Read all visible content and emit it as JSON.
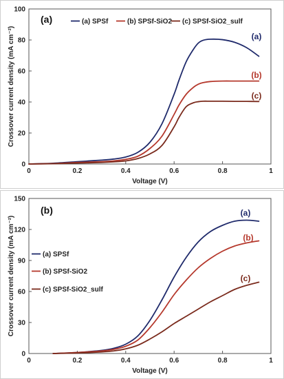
{
  "chart_data": [
    {
      "type": "line",
      "panel_label": "(a)",
      "xlabel": "Voltage (V)",
      "ylabel": "Crossover current density (mA cm⁻²)",
      "xlim": [
        0,
        1
      ],
      "ylim": [
        0,
        100
      ],
      "xticks": [
        0,
        0.2,
        0.4,
        0.6,
        0.8,
        1
      ],
      "xtick_labels": [
        "0",
        "0.2",
        "0.4",
        "0.6",
        "0.8",
        "1"
      ],
      "yticks": [
        0,
        20,
        40,
        60,
        80,
        100
      ],
      "ytick_labels": [
        "0",
        "20",
        "40",
        "60",
        "80",
        "100"
      ],
      "legend_position": "top",
      "series": [
        {
          "name": "(a) SPSf",
          "label": "(a)",
          "color": "#1f2a6b",
          "x": [
            0.0,
            0.1,
            0.2,
            0.3,
            0.35,
            0.4,
            0.45,
            0.5,
            0.55,
            0.6,
            0.62,
            0.65,
            0.68,
            0.7,
            0.72,
            0.75,
            0.8,
            0.85,
            0.9,
            0.95
          ],
          "y": [
            0,
            0.5,
            1.5,
            2.5,
            3.2,
            4.5,
            7.5,
            14,
            26,
            45,
            54,
            66,
            74,
            78,
            79.8,
            80.5,
            80.2,
            78.5,
            75,
            69.5
          ]
        },
        {
          "name": "(b) SPSf-SiO2",
          "label": "(b)",
          "color": "#b5382c",
          "x": [
            0.0,
            0.1,
            0.2,
            0.3,
            0.35,
            0.4,
            0.45,
            0.5,
            0.55,
            0.6,
            0.62,
            0.65,
            0.68,
            0.7,
            0.72,
            0.75,
            0.8,
            0.85,
            0.9,
            0.95
          ],
          "y": [
            0,
            0.3,
            1.0,
            1.5,
            2.0,
            3.0,
            5.0,
            10,
            18,
            32,
            38,
            45,
            49.5,
            51.5,
            52.5,
            53.2,
            53.5,
            53.5,
            53.5,
            53.5
          ]
        },
        {
          "name": "(c) SPSf-SiO2_sulf",
          "label": "(c)",
          "color": "#7a2a1c",
          "x": [
            0.0,
            0.1,
            0.2,
            0.3,
            0.35,
            0.4,
            0.45,
            0.5,
            0.55,
            0.6,
            0.62,
            0.65,
            0.68,
            0.7,
            0.72,
            0.75,
            0.8,
            0.85,
            0.9,
            0.95
          ],
          "y": [
            0,
            0.2,
            0.6,
            1.0,
            1.4,
            2.0,
            3.5,
            6.5,
            12,
            24,
            30,
            37,
            39.5,
            40.2,
            40.5,
            40.5,
            40.5,
            40.4,
            40.4,
            40.3
          ]
        }
      ]
    },
    {
      "type": "line",
      "panel_label": "(b)",
      "xlabel": "Voltage (V)",
      "ylabel": "Crossover current density (mA cm⁻²)",
      "xlim": [
        0,
        1
      ],
      "ylim": [
        0,
        150
      ],
      "xticks": [
        0,
        0.2,
        0.4,
        0.6,
        0.8,
        1
      ],
      "xtick_labels": [
        "0",
        "0.2",
        "0.4",
        "0.6",
        "0.8",
        "1"
      ],
      "yticks": [
        0,
        30,
        60,
        90,
        120,
        150
      ],
      "ytick_labels": [
        "0",
        "30",
        "60",
        "90",
        "120",
        "150"
      ],
      "legend_position": "left",
      "series": [
        {
          "name": "(a) SPSf",
          "label": "(a)",
          "color": "#1f2a6b",
          "x": [
            0.1,
            0.2,
            0.3,
            0.35,
            0.4,
            0.45,
            0.5,
            0.55,
            0.6,
            0.65,
            0.7,
            0.75,
            0.8,
            0.85,
            0.9,
            0.95
          ],
          "y": [
            0,
            1,
            3,
            5,
            9,
            17,
            32,
            52,
            74,
            93,
            108,
            118,
            124,
            128,
            129,
            128
          ]
        },
        {
          "name": "(b) SPSf-SiO2",
          "label": "(b)",
          "color": "#b5382c",
          "x": [
            0.1,
            0.2,
            0.3,
            0.35,
            0.4,
            0.45,
            0.5,
            0.55,
            0.6,
            0.65,
            0.7,
            0.75,
            0.8,
            0.85,
            0.9,
            0.95
          ],
          "y": [
            0,
            1,
            2.5,
            4,
            7,
            13,
            25,
            40,
            57,
            71,
            83,
            92,
            99,
            104,
            107,
            109
          ]
        },
        {
          "name": "(c) SPSf-SiO2_sulf",
          "label": "(c)",
          "color": "#7a2a1c",
          "x": [
            0.1,
            0.2,
            0.3,
            0.35,
            0.4,
            0.45,
            0.5,
            0.55,
            0.6,
            0.65,
            0.7,
            0.75,
            0.8,
            0.85,
            0.9,
            0.95
          ],
          "y": [
            0,
            0.5,
            1.5,
            2.5,
            4.5,
            8,
            14,
            21,
            29,
            36,
            43,
            50,
            56,
            62,
            66,
            69
          ]
        }
      ]
    }
  ]
}
